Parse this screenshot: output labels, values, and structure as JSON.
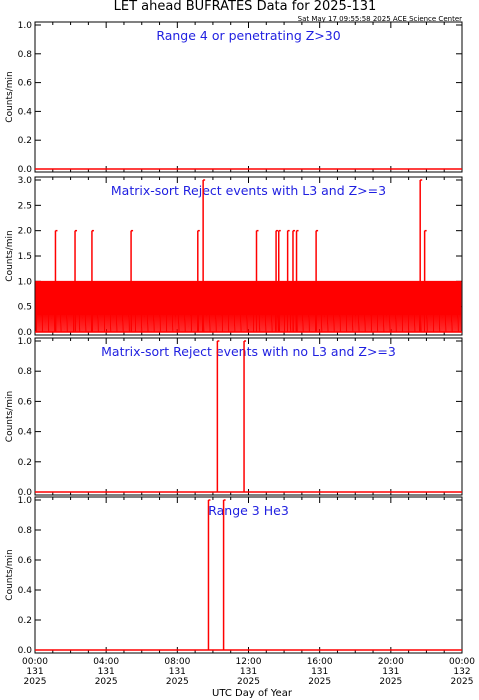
{
  "header": {
    "title": "LET ahead BUFRATES Data for 2025-131",
    "timestamp": "Sat May 17 09:55:58 2025 ACE Science Center"
  },
  "colors": {
    "data": "#ff0000",
    "panel_title": "#1f1fe0",
    "axes": "#000000"
  },
  "chart_data": [
    {
      "type": "line",
      "title": "Range 4 or   penetrating Z>30",
      "ylabel": "Counts/min",
      "ylim": [
        0,
        1
      ],
      "yticks": [
        "0.0",
        "0.2",
        "0.4",
        "0.6",
        "0.8",
        "1.0"
      ],
      "xlim": [
        0,
        24
      ],
      "baseline": 0,
      "spikes": []
    },
    {
      "type": "line",
      "title": "Matrix-sort Reject events with L3 and Z>=3",
      "ylabel": "Counts/min",
      "ylim": [
        0,
        3
      ],
      "yticks": [
        "0.0",
        "0.5",
        "1.0",
        "1.5",
        "2.0",
        "2.5",
        "3.0"
      ],
      "xlim": [
        0,
        24
      ],
      "baseline": 0,
      "dense_ones": {
        "from": 0.05,
        "to": 23.95,
        "step": 0.067
      },
      "spikes": [
        {
          "x": 1.15,
          "y": 2
        },
        {
          "x": 2.25,
          "y": 2
        },
        {
          "x": 3.2,
          "y": 2
        },
        {
          "x": 5.4,
          "y": 2
        },
        {
          "x": 9.15,
          "y": 2
        },
        {
          "x": 9.45,
          "y": 3
        },
        {
          "x": 12.45,
          "y": 2
        },
        {
          "x": 13.55,
          "y": 2
        },
        {
          "x": 13.7,
          "y": 2
        },
        {
          "x": 14.2,
          "y": 2
        },
        {
          "x": 14.5,
          "y": 2
        },
        {
          "x": 14.7,
          "y": 2
        },
        {
          "x": 15.8,
          "y": 2
        },
        {
          "x": 21.65,
          "y": 3
        },
        {
          "x": 21.9,
          "y": 2
        }
      ]
    },
    {
      "type": "line",
      "title": "Matrix-sort Reject events with no L3 and Z>=3",
      "ylabel": "Counts/min",
      "ylim": [
        0,
        1
      ],
      "yticks": [
        "0.0",
        "0.2",
        "0.4",
        "0.6",
        "0.8",
        "1.0"
      ],
      "xlim": [
        0,
        24
      ],
      "baseline": 0,
      "spikes": [
        {
          "x": 10.25,
          "y": 1
        },
        {
          "x": 11.75,
          "y": 1
        }
      ]
    },
    {
      "type": "line",
      "title": "Range 3 He3",
      "ylabel": "Counts/min",
      "ylim": [
        0,
        1
      ],
      "yticks": [
        "0.0",
        "0.2",
        "0.4",
        "0.6",
        "0.8",
        "1.0"
      ],
      "xlim": [
        0,
        24
      ],
      "baseline": 0,
      "spikes": [
        {
          "x": 9.75,
          "y": 1
        },
        {
          "x": 10.6,
          "y": 1
        }
      ]
    }
  ],
  "xaxis": {
    "label": "UTC Day of Year",
    "ticks": [
      {
        "x": 0,
        "time": "00:00",
        "doy": "131",
        "year": "2025"
      },
      {
        "x": 4,
        "time": "04:00",
        "doy": "131",
        "year": "2025"
      },
      {
        "x": 8,
        "time": "08:00",
        "doy": "131",
        "year": "2025"
      },
      {
        "x": 12,
        "time": "12:00",
        "doy": "131",
        "year": "2025"
      },
      {
        "x": 16,
        "time": "16:00",
        "doy": "131",
        "year": "2025"
      },
      {
        "x": 20,
        "time": "20:00",
        "doy": "131",
        "year": "2025"
      },
      {
        "x": 24,
        "time": "00:00",
        "doy": "132",
        "year": "2025"
      }
    ]
  }
}
